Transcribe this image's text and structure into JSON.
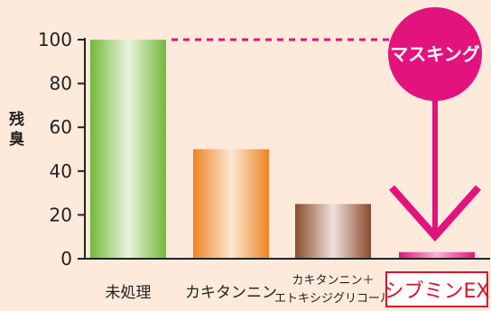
{
  "colors": {
    "background": "#fdeadb",
    "masking": "#e3137e",
    "highlight_box": "#d8142c"
  },
  "chart_data": {
    "type": "bar",
    "ylabel": "残臭",
    "ylim": [
      0,
      100
    ],
    "yticks": [
      0,
      20,
      40,
      60,
      80,
      100
    ],
    "categories": [
      "未処理",
      "カキタンニン",
      "カキタンニン＋\nエトキシジグリコール",
      "シブミンEX"
    ],
    "values": [
      100,
      50,
      25,
      3
    ],
    "bar_colors": [
      [
        "#74b93a",
        "#eaf3df"
      ],
      [
        "#ef8423",
        "#fbe8d4"
      ],
      [
        "#8a4a2e",
        "#f0e2dc"
      ],
      [
        "#e3137e",
        "#f7b3d6"
      ]
    ],
    "highlighted_category_index": 3,
    "reference_line_value": 100,
    "annotation": {
      "badge_text": "マスキング"
    }
  }
}
